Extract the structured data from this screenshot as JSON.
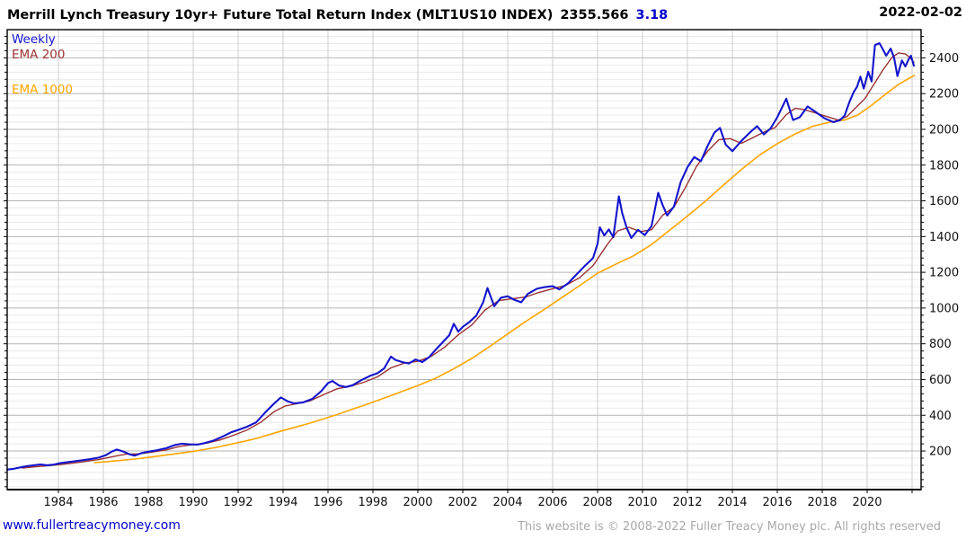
{
  "header": {
    "title": "Merrill Lynch Treasury 10yr+ Future Total Return Index (MLT1US10 INDEX)",
    "last_value": "2355.566",
    "change": "3.18",
    "change_color": "#0000cc",
    "date": "2022-02-02"
  },
  "legend": {
    "weekly": {
      "label": "Weekly",
      "color": "#1414cc"
    },
    "ema200": {
      "label": "EMA 200",
      "color": "#993333"
    },
    "ema1000": {
      "label": "EMA 1000",
      "color": "#ffa500"
    }
  },
  "footer": {
    "site": "www.fullertreacymoney.com",
    "copyright": "This website is © 2008-2022 Fuller Treacy Money plc. All rights reserved"
  },
  "chart_data": {
    "type": "line",
    "title": "Merrill Lynch Treasury 10yr+ Future Total Return Index (MLT1US10 INDEX)",
    "xlabel": "",
    "ylabel": "",
    "xlim": [
      1981.72,
      2022.4
    ],
    "ylim": [
      -16,
      2558
    ],
    "x_tick_step_years": 2,
    "x_gridline_years": [
      1984,
      1986,
      1988,
      1990,
      1992,
      1994,
      1996,
      1998,
      2000,
      2002,
      2004,
      2006,
      2008,
      2010,
      2012,
      2014,
      2016,
      2018,
      2020,
      2022
    ],
    "x_tick_labels": [
      "1984",
      "1986",
      "1988",
      "1990",
      "1992",
      "1994",
      "1996",
      "1998",
      "2000",
      "2002",
      "2004",
      "2006",
      "2008",
      "2010",
      "2012",
      "2014",
      "2016",
      "2018",
      "2020"
    ],
    "y_major_ticks": [
      200,
      400,
      600,
      800,
      1000,
      1200,
      1400,
      1600,
      1800,
      2000,
      2200,
      2400
    ],
    "y_minor_step": 40,
    "grid": {
      "vertical_color": "#cccccc",
      "major_color": "#b5b5b5",
      "minor_color": "#eaeaea",
      "frame_color": "#000000"
    },
    "legend_position": "top-left",
    "series": [
      {
        "name": "EMA 1000",
        "color": "#ffa500",
        "width": 1.6,
        "points": [
          [
            1985.6,
            135
          ],
          [
            1986.2,
            141
          ],
          [
            1986.8,
            148
          ],
          [
            1987.4,
            155
          ],
          [
            1988.0,
            164
          ],
          [
            1988.6,
            174
          ],
          [
            1989.2,
            184
          ],
          [
            1989.8,
            194
          ],
          [
            1990.4,
            206
          ],
          [
            1991.0,
            220
          ],
          [
            1991.6,
            236
          ],
          [
            1992.2,
            252
          ],
          [
            1992.8,
            270
          ],
          [
            1993.4,
            292
          ],
          [
            1994.0,
            315
          ],
          [
            1994.6,
            335
          ],
          [
            1995.2,
            356
          ],
          [
            1995.8,
            380
          ],
          [
            1996.4,
            404
          ],
          [
            1997.0,
            430
          ],
          [
            1997.6,
            455
          ],
          [
            1998.2,
            482
          ],
          [
            1998.8,
            510
          ],
          [
            1999.4,
            538
          ],
          [
            2000.0,
            566
          ],
          [
            2000.8,
            608
          ],
          [
            2001.6,
            660
          ],
          [
            2002.4,
            718
          ],
          [
            2003.2,
            785
          ],
          [
            2004.0,
            855
          ],
          [
            2004.8,
            925
          ],
          [
            2005.6,
            990
          ],
          [
            2006.4,
            1058
          ],
          [
            2007.2,
            1125
          ],
          [
            2008.0,
            1195
          ],
          [
            2008.8,
            1245
          ],
          [
            2009.6,
            1292
          ],
          [
            2010.4,
            1355
          ],
          [
            2011.2,
            1435
          ],
          [
            2012.0,
            1515
          ],
          [
            2012.8,
            1598
          ],
          [
            2013.6,
            1688
          ],
          [
            2014.4,
            1775
          ],
          [
            2015.2,
            1855
          ],
          [
            2016.0,
            1920
          ],
          [
            2016.8,
            1975
          ],
          [
            2017.6,
            2018
          ],
          [
            2018.4,
            2042
          ],
          [
            2019.0,
            2052
          ],
          [
            2019.6,
            2082
          ],
          [
            2020.2,
            2135
          ],
          [
            2020.8,
            2195
          ],
          [
            2021.4,
            2252
          ],
          [
            2021.9,
            2288
          ],
          [
            2022.1,
            2302
          ]
        ]
      },
      {
        "name": "EMA 200",
        "color": "#993333",
        "width": 1.4,
        "points": [
          [
            1982.4,
            104
          ],
          [
            1983.0,
            112
          ],
          [
            1983.6,
            118
          ],
          [
            1984.2,
            126
          ],
          [
            1985.0,
            138
          ],
          [
            1985.8,
            152
          ],
          [
            1986.4,
            168
          ],
          [
            1987.0,
            182
          ],
          [
            1987.6,
            184
          ],
          [
            1988.2,
            194
          ],
          [
            1988.8,
            206
          ],
          [
            1989.4,
            226
          ],
          [
            1990.0,
            236
          ],
          [
            1990.6,
            244
          ],
          [
            1991.2,
            262
          ],
          [
            1991.8,
            288
          ],
          [
            1992.4,
            318
          ],
          [
            1993.0,
            360
          ],
          [
            1993.6,
            420
          ],
          [
            1994.1,
            452
          ],
          [
            1994.6,
            464
          ],
          [
            1995.2,
            480
          ],
          [
            1995.8,
            515
          ],
          [
            1996.4,
            548
          ],
          [
            1997.0,
            562
          ],
          [
            1997.6,
            585
          ],
          [
            1998.2,
            615
          ],
          [
            1998.8,
            665
          ],
          [
            1999.4,
            692
          ],
          [
            2000.0,
            702
          ],
          [
            2000.6,
            730
          ],
          [
            2001.2,
            782
          ],
          [
            2001.8,
            850
          ],
          [
            2002.4,
            905
          ],
          [
            2003.0,
            990
          ],
          [
            2003.6,
            1042
          ],
          [
            2004.2,
            1052
          ],
          [
            2004.8,
            1062
          ],
          [
            2005.4,
            1088
          ],
          [
            2006.0,
            1108
          ],
          [
            2006.6,
            1128
          ],
          [
            2007.2,
            1170
          ],
          [
            2007.8,
            1238
          ],
          [
            2008.4,
            1350
          ],
          [
            2008.9,
            1432
          ],
          [
            2009.4,
            1452
          ],
          [
            2009.9,
            1428
          ],
          [
            2010.4,
            1438
          ],
          [
            2010.9,
            1520
          ],
          [
            2011.4,
            1565
          ],
          [
            2011.9,
            1672
          ],
          [
            2012.4,
            1792
          ],
          [
            2012.9,
            1878
          ],
          [
            2013.4,
            1942
          ],
          [
            2013.9,
            1948
          ],
          [
            2014.4,
            1922
          ],
          [
            2014.9,
            1952
          ],
          [
            2015.4,
            1985
          ],
          [
            2015.9,
            2010
          ],
          [
            2016.4,
            2082
          ],
          [
            2016.8,
            2118
          ],
          [
            2017.2,
            2110
          ],
          [
            2017.7,
            2092
          ],
          [
            2018.2,
            2072
          ],
          [
            2018.7,
            2052
          ],
          [
            2019.1,
            2072
          ],
          [
            2019.5,
            2122
          ],
          [
            2019.9,
            2172
          ],
          [
            2020.3,
            2252
          ],
          [
            2020.7,
            2332
          ],
          [
            2021.1,
            2402
          ],
          [
            2021.4,
            2428
          ],
          [
            2021.7,
            2422
          ],
          [
            2021.9,
            2402
          ],
          [
            2022.08,
            2375
          ]
        ]
      },
      {
        "name": "Weekly",
        "color": "#1414cc",
        "width": 2.1,
        "points": [
          [
            1981.72,
            96
          ],
          [
            1982.0,
            100
          ],
          [
            1982.3,
            108
          ],
          [
            1982.6,
            115
          ],
          [
            1982.9,
            120
          ],
          [
            1983.2,
            125
          ],
          [
            1983.5,
            120
          ],
          [
            1983.8,
            124
          ],
          [
            1984.1,
            133
          ],
          [
            1984.5,
            139
          ],
          [
            1985.0,
            147
          ],
          [
            1985.4,
            154
          ],
          [
            1985.8,
            163
          ],
          [
            1986.1,
            176
          ],
          [
            1986.4,
            198
          ],
          [
            1986.6,
            208
          ],
          [
            1986.9,
            196
          ],
          [
            1987.2,
            180
          ],
          [
            1987.4,
            174
          ],
          [
            1987.7,
            188
          ],
          [
            1988.0,
            196
          ],
          [
            1988.4,
            204
          ],
          [
            1988.8,
            216
          ],
          [
            1989.2,
            234
          ],
          [
            1989.5,
            241
          ],
          [
            1989.8,
            238
          ],
          [
            1990.2,
            236
          ],
          [
            1990.5,
            244
          ],
          [
            1990.9,
            258
          ],
          [
            1991.3,
            280
          ],
          [
            1991.7,
            305
          ],
          [
            1992.0,
            318
          ],
          [
            1992.4,
            336
          ],
          [
            1992.8,
            360
          ],
          [
            1993.2,
            415
          ],
          [
            1993.6,
            465
          ],
          [
            1993.9,
            500
          ],
          [
            1994.2,
            478
          ],
          [
            1994.5,
            466
          ],
          [
            1994.9,
            472
          ],
          [
            1995.3,
            492
          ],
          [
            1995.7,
            535
          ],
          [
            1996.0,
            580
          ],
          [
            1996.2,
            592
          ],
          [
            1996.5,
            566
          ],
          [
            1996.8,
            558
          ],
          [
            1997.1,
            568
          ],
          [
            1997.5,
            598
          ],
          [
            1997.9,
            622
          ],
          [
            1998.2,
            635
          ],
          [
            1998.5,
            662
          ],
          [
            1998.8,
            728
          ],
          [
            1999.0,
            710
          ],
          [
            1999.3,
            698
          ],
          [
            1999.6,
            690
          ],
          [
            1999.9,
            712
          ],
          [
            2000.2,
            698
          ],
          [
            2000.5,
            725
          ],
          [
            2000.8,
            768
          ],
          [
            2001.1,
            808
          ],
          [
            2001.4,
            848
          ],
          [
            2001.6,
            912
          ],
          [
            2001.8,
            868
          ],
          [
            2002.0,
            895
          ],
          [
            2002.3,
            922
          ],
          [
            2002.6,
            958
          ],
          [
            2002.9,
            1030
          ],
          [
            2003.1,
            1112
          ],
          [
            2003.4,
            1010
          ],
          [
            2003.7,
            1058
          ],
          [
            2004.0,
            1066
          ],
          [
            2004.3,
            1046
          ],
          [
            2004.6,
            1032
          ],
          [
            2004.9,
            1080
          ],
          [
            2005.3,
            1108
          ],
          [
            2005.7,
            1118
          ],
          [
            2006.0,
            1122
          ],
          [
            2006.3,
            1104
          ],
          [
            2006.7,
            1140
          ],
          [
            2007.0,
            1180
          ],
          [
            2007.4,
            1232
          ],
          [
            2007.8,
            1280
          ],
          [
            2008.0,
            1360
          ],
          [
            2008.1,
            1452
          ],
          [
            2008.3,
            1406
          ],
          [
            2008.5,
            1440
          ],
          [
            2008.7,
            1396
          ],
          [
            2008.95,
            1625
          ],
          [
            2009.1,
            1530
          ],
          [
            2009.3,
            1448
          ],
          [
            2009.5,
            1392
          ],
          [
            2009.8,
            1438
          ],
          [
            2010.1,
            1408
          ],
          [
            2010.4,
            1458
          ],
          [
            2010.7,
            1645
          ],
          [
            2010.9,
            1575
          ],
          [
            2011.1,
            1518
          ],
          [
            2011.4,
            1568
          ],
          [
            2011.7,
            1705
          ],
          [
            2012.0,
            1788
          ],
          [
            2012.3,
            1845
          ],
          [
            2012.6,
            1822
          ],
          [
            2012.9,
            1908
          ],
          [
            2013.2,
            1982
          ],
          [
            2013.45,
            2008
          ],
          [
            2013.7,
            1915
          ],
          [
            2014.0,
            1878
          ],
          [
            2014.4,
            1935
          ],
          [
            2014.8,
            1985
          ],
          [
            2015.1,
            2018
          ],
          [
            2015.4,
            1972
          ],
          [
            2015.7,
            2005
          ],
          [
            2016.0,
            2068
          ],
          [
            2016.4,
            2172
          ],
          [
            2016.7,
            2052
          ],
          [
            2017.0,
            2068
          ],
          [
            2017.35,
            2128
          ],
          [
            2017.7,
            2098
          ],
          [
            2018.1,
            2062
          ],
          [
            2018.5,
            2040
          ],
          [
            2018.8,
            2052
          ],
          [
            2019.0,
            2078
          ],
          [
            2019.2,
            2150
          ],
          [
            2019.4,
            2208
          ],
          [
            2019.55,
            2238
          ],
          [
            2019.7,
            2295
          ],
          [
            2019.85,
            2228
          ],
          [
            2020.05,
            2322
          ],
          [
            2020.2,
            2268
          ],
          [
            2020.35,
            2472
          ],
          [
            2020.55,
            2482
          ],
          [
            2020.7,
            2448
          ],
          [
            2020.85,
            2412
          ],
          [
            2021.05,
            2452
          ],
          [
            2021.2,
            2400
          ],
          [
            2021.35,
            2298
          ],
          [
            2021.55,
            2386
          ],
          [
            2021.7,
            2352
          ],
          [
            2021.85,
            2392
          ],
          [
            2021.95,
            2412
          ],
          [
            2022.08,
            2356
          ]
        ]
      }
    ]
  }
}
